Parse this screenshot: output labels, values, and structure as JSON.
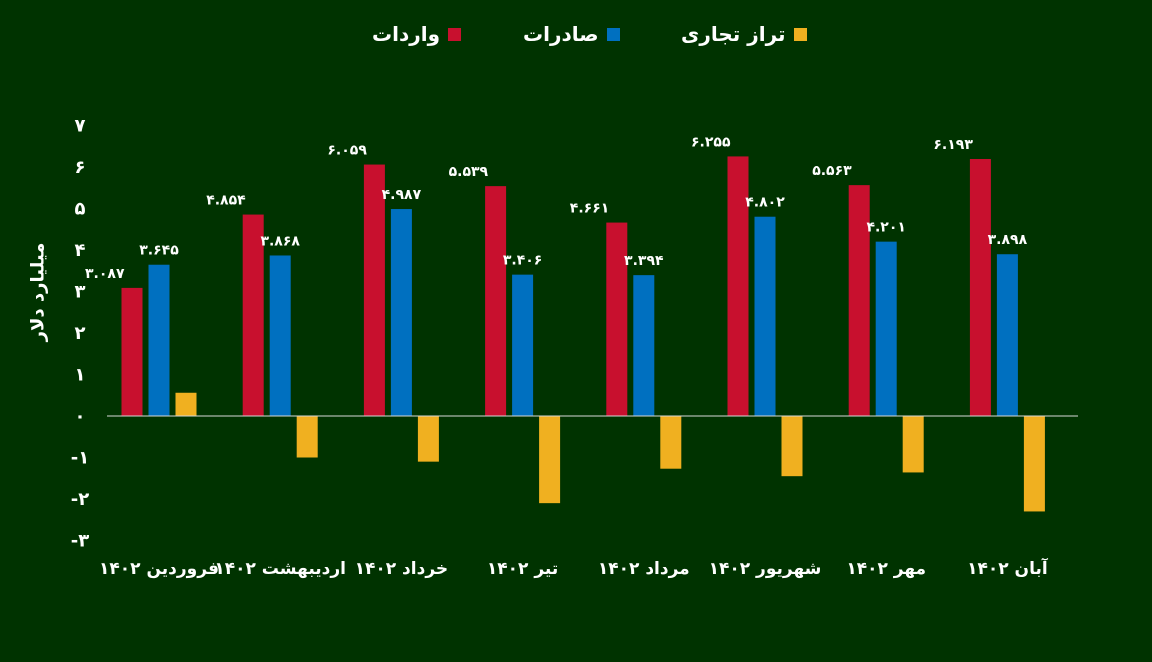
{
  "chart_data": {
    "type": "bar",
    "title": "",
    "xlabel": "",
    "ylabel": "میلیارد دلار",
    "ylim": [
      -3,
      7
    ],
    "yticks": [
      "-۳",
      "-۲",
      "-۱",
      "۰",
      "۱",
      "۲",
      "۳",
      "۴",
      "۵",
      "۶",
      "۷"
    ],
    "ytick_values": [
      -3,
      -2,
      -1,
      0,
      1,
      2,
      3,
      4,
      5,
      6,
      7
    ],
    "categories": [
      "فروردین ۱۴۰۲",
      "اردیبهشت ۱۴۰۲",
      "خرداد ۱۴۰۲",
      "تیر ۱۴۰۲",
      "مرداد ۱۴۰۲",
      "شهریور ۱۴۰۲",
      "مهر ۱۴۰۲",
      "آبان ۱۴۰۲"
    ],
    "grid": false,
    "legend_position": "top",
    "series": [
      {
        "name": "واردات",
        "color": "#c8102e",
        "values": [
          3.087,
          4.854,
          6.059,
          5.539,
          4.661,
          6.255,
          5.563,
          6.193
        ],
        "labels": [
          "۳.۰۸۷",
          "۴.۸۵۴",
          "۶.۰۵۹",
          "۵.۵۳۹",
          "۴.۶۶۱",
          "۶.۲۵۵",
          "۵.۵۶۳",
          "۶.۱۹۳"
        ]
      },
      {
        "name": "صادرات",
        "color": "#0070c0",
        "values": [
          3.645,
          3.868,
          4.987,
          3.406,
          3.394,
          4.802,
          4.201,
          3.898
        ],
        "labels": [
          "۳.۶۴۵",
          "۳.۸۶۸",
          "۴.۹۸۷",
          "۳.۴۰۶",
          "۳.۳۹۴",
          "۴.۸۰۲",
          "۴.۲۰۱",
          "۳.۸۹۸"
        ]
      },
      {
        "name": "تراز تجاری",
        "color": "#f0b020",
        "values": [
          0.56,
          -1.0,
          -1.1,
          -2.1,
          -1.27,
          -1.45,
          -1.36,
          -2.3
        ],
        "labels": []
      }
    ]
  }
}
